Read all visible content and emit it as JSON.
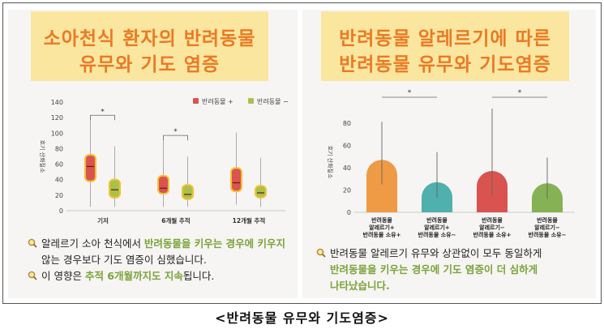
{
  "left_panel": {
    "title_line1": "소아천식 환자의 반려동물",
    "title_line2": "유무와 기도 염증",
    "notes": [
      {
        "parts": [
          {
            "text": "알레르기 소아 천식에서 ",
            "hl": false
          },
          {
            "text": "반려동물을 키우는 경우에 키우지",
            "hl": true
          }
        ]
      },
      {
        "parts": [
          {
            "text": "않는 경우보다 기도 염증이 심했습니다.",
            "hl": false
          }
        ]
      },
      {
        "parts": [
          {
            "text": "이 영향은 ",
            "hl": false
          },
          {
            "text": "추적 6개월까지도 지속",
            "hl": true
          },
          {
            "text": "됩니다.",
            "hl": false
          }
        ]
      }
    ]
  },
  "right_panel": {
    "title_line1": "반려동물 알레르기에 따른",
    "title_line2": "반려동물 유무와 기도염증",
    "notes": [
      {
        "parts": [
          {
            "text": "반려동물 알레르기 유무와 상관없이 모두 동일하게",
            "hl": false
          }
        ]
      },
      {
        "parts": [
          {
            "text": "반려동물을 키우는 경우에 기도 염증이 더 심하게",
            "hl": true
          }
        ]
      },
      {
        "parts": [
          {
            "text": "나타났습니다.",
            "hl": true
          }
        ]
      }
    ]
  },
  "caption": "<반려동물 유무와 기도염증>",
  "colors": {
    "pet_plus": "#d9534f",
    "pet_minus": "#a9c14a",
    "title_bg": "#fbe6a0",
    "title_text": "#ea7a24",
    "highlight": "#7aa33a"
  },
  "icon": "magnifier-icon",
  "chart_data": [
    {
      "type": "box",
      "ylabel": "호기 산화질소",
      "ylim": [
        0,
        140
      ],
      "yticks": [
        0,
        20,
        40,
        60,
        80,
        100,
        120,
        140
      ],
      "categories": [
        "기저",
        "6개월 추적",
        "12개월 추적"
      ],
      "legend": [
        "반려동물 +",
        "반려동물 −"
      ],
      "legend_position": "top-right",
      "series": [
        {
          "name": "반려동물 +",
          "color": "#d9534f",
          "boxes": [
            {
              "min": 5,
              "q1": 38,
              "median": 57,
              "q3": 72,
              "max": 118
            },
            {
              "min": 5,
              "q1": 22,
              "median": 29,
              "q3": 45,
              "max": 92
            },
            {
              "min": 8,
              "q1": 25,
              "median": 36,
              "q3": 55,
              "max": 101
            }
          ]
        },
        {
          "name": "반려동물 −",
          "color": "#a9c14a",
          "boxes": [
            {
              "min": 5,
              "q1": 17,
              "median": 27,
              "q3": 40,
              "max": 83
            },
            {
              "min": 5,
              "q1": 15,
              "median": 21,
              "q3": 33,
              "max": 70
            },
            {
              "min": 5,
              "q1": 17,
              "median": 23,
              "q3": 32,
              "max": 68
            }
          ]
        }
      ],
      "significance": [
        {
          "category": "기저",
          "label": "*"
        },
        {
          "category": "6개월 추적",
          "label": "*"
        }
      ],
      "grid": false
    },
    {
      "type": "bar",
      "ylabel": "호기 산화질소",
      "ylim": [
        0,
        90
      ],
      "yticks": [
        0,
        20,
        40,
        60,
        80
      ],
      "categories": [
        [
          "반려동물",
          "알레르기+",
          "반려동물 소유+"
        ],
        [
          "반려동물",
          "알레르기+",
          "반려동물 소유−"
        ],
        [
          "반려동물",
          "알레르기−",
          "반려동물 소유+"
        ],
        [
          "반려동물",
          "알레르기−",
          "반려동물 소유−"
        ]
      ],
      "values": [
        47,
        27,
        37,
        26
      ],
      "error_low": [
        25,
        13,
        14,
        12
      ],
      "error_high": [
        81,
        54,
        93,
        49
      ],
      "colors": [
        "#ef9a45",
        "#4fb0ad",
        "#d9534f",
        "#86b154"
      ],
      "significance": [
        {
          "between": [
            0,
            1
          ],
          "label": "*"
        },
        {
          "between": [
            2,
            3
          ],
          "label": "*"
        }
      ],
      "grid": false
    }
  ]
}
